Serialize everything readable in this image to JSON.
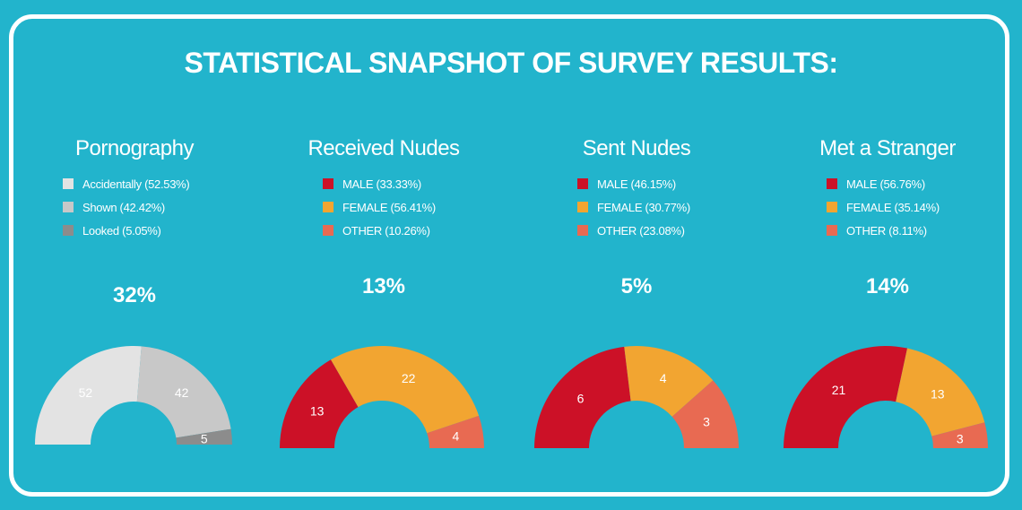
{
  "title": "STATISTICAL SNAPSHOT OF SURVEY RESULTS:",
  "chart_data": [
    {
      "type": "pie",
      "title": "Pornography",
      "percent_label": "32%",
      "legend": [
        "Accidentally (52.53%)",
        "Shown (42.42%)",
        "Looked (5.05%)"
      ],
      "categories": [
        "Accidentally",
        "Shown",
        "Looked"
      ],
      "values": [
        52,
        42,
        5
      ],
      "colors": [
        "#e3e3e3",
        "#c8c8c8",
        "#8c8c8c"
      ]
    },
    {
      "type": "pie",
      "title": "Received Nudes",
      "percent_label": "13%",
      "legend": [
        "MALE (33.33%)",
        "FEMALE (56.41%)",
        "OTHER (10.26%)"
      ],
      "categories": [
        "MALE",
        "FEMALE",
        "OTHER"
      ],
      "values": [
        13,
        22,
        4
      ],
      "colors": [
        "#cc1127",
        "#f2a531",
        "#e86a52"
      ]
    },
    {
      "type": "pie",
      "title": "Sent Nudes",
      "percent_label": "5%",
      "legend": [
        "MALE (46.15%)",
        "FEMALE (30.77%)",
        "OTHER (23.08%)"
      ],
      "categories": [
        "MALE",
        "FEMALE",
        "OTHER"
      ],
      "values": [
        6,
        4,
        3
      ],
      "colors": [
        "#cc1127",
        "#f2a531",
        "#e86a52"
      ]
    },
    {
      "type": "pie",
      "title": "Met a Stranger",
      "percent_label": "14%",
      "legend": [
        "MALE (56.76%)",
        "FEMALE (35.14%)",
        "OTHER (8.11%)"
      ],
      "categories": [
        "MALE",
        "FEMALE",
        "OTHER"
      ],
      "values": [
        21,
        13,
        3
      ],
      "colors": [
        "#cc1127",
        "#f2a531",
        "#e86a52"
      ]
    }
  ]
}
